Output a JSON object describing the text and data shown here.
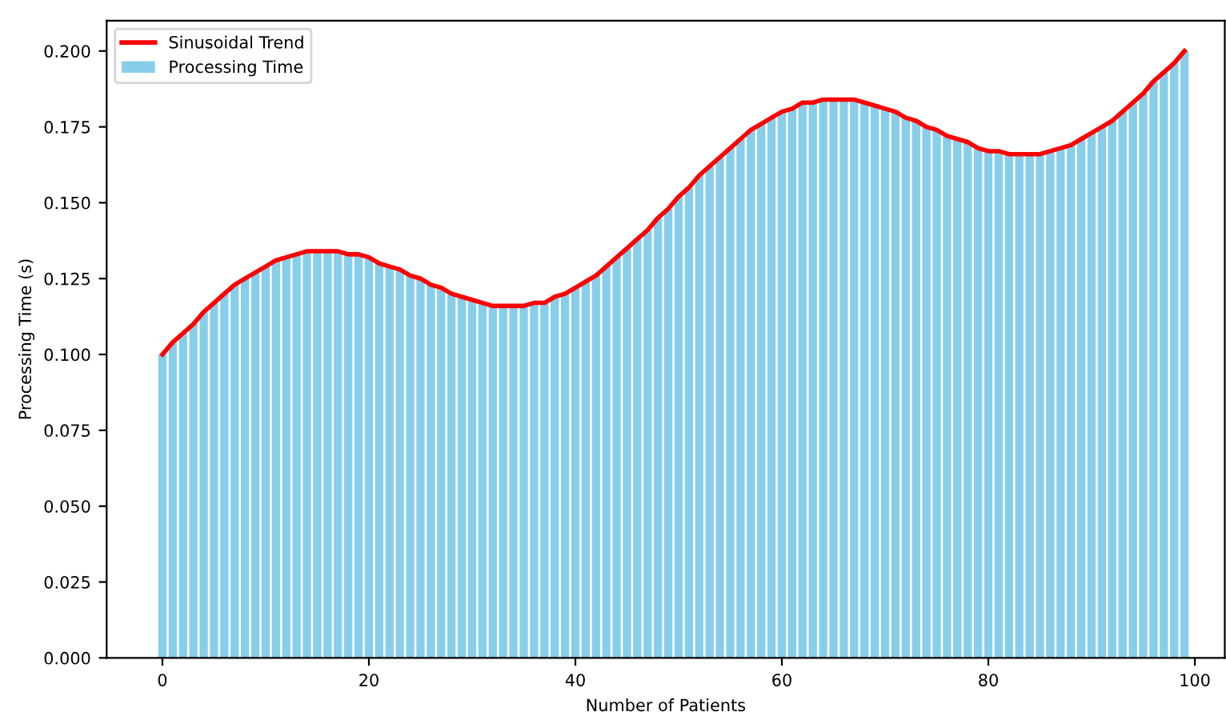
{
  "chart_data": {
    "type": "bar",
    "xlabel": "Number of Patients",
    "ylabel": "Processing Time (s)",
    "x": [
      0,
      1,
      2,
      3,
      4,
      5,
      6,
      7,
      8,
      9,
      10,
      11,
      12,
      13,
      14,
      15,
      16,
      17,
      18,
      19,
      20,
      21,
      22,
      23,
      24,
      25,
      26,
      27,
      28,
      29,
      30,
      31,
      32,
      33,
      34,
      35,
      36,
      37,
      38,
      39,
      40,
      41,
      42,
      43,
      44,
      45,
      46,
      47,
      48,
      49,
      50,
      51,
      52,
      53,
      54,
      55,
      56,
      57,
      58,
      59,
      60,
      61,
      62,
      63,
      64,
      65,
      66,
      67,
      68,
      69,
      70,
      71,
      72,
      73,
      74,
      75,
      76,
      77,
      78,
      79,
      80,
      81,
      82,
      83,
      84,
      85,
      86,
      87,
      88,
      89,
      90,
      91,
      92,
      93,
      94,
      95,
      96,
      97,
      98,
      99
    ],
    "series": [
      {
        "name": "Processing Time",
        "color": "#87ceeb",
        "values": [
          0.1,
          0.104,
          0.107,
          0.11,
          0.114,
          0.117,
          0.12,
          0.123,
          0.125,
          0.127,
          0.129,
          0.131,
          0.132,
          0.133,
          0.134,
          0.134,
          0.134,
          0.134,
          0.133,
          0.133,
          0.132,
          0.13,
          0.129,
          0.128,
          0.126,
          0.125,
          0.123,
          0.122,
          0.12,
          0.119,
          0.118,
          0.117,
          0.116,
          0.116,
          0.116,
          0.116,
          0.117,
          0.117,
          0.119,
          0.12,
          0.122,
          0.124,
          0.126,
          0.129,
          0.132,
          0.135,
          0.138,
          0.141,
          0.145,
          0.148,
          0.152,
          0.155,
          0.159,
          0.162,
          0.165,
          0.168,
          0.171,
          0.174,
          0.176,
          0.178,
          0.18,
          0.181,
          0.183,
          0.183,
          0.184,
          0.184,
          0.184,
          0.184,
          0.183,
          0.182,
          0.181,
          0.18,
          0.178,
          0.177,
          0.175,
          0.174,
          0.172,
          0.171,
          0.17,
          0.168,
          0.167,
          0.167,
          0.166,
          0.166,
          0.166,
          0.166,
          0.167,
          0.168,
          0.169,
          0.171,
          0.173,
          0.175,
          0.177,
          0.18,
          0.183,
          0.186,
          0.19,
          0.193,
          0.196,
          0.2
        ]
      },
      {
        "name": "Sinusoidal Trend",
        "type": "line",
        "color": "#ff0000",
        "values": [
          0.1,
          0.104,
          0.107,
          0.11,
          0.114,
          0.117,
          0.12,
          0.123,
          0.125,
          0.127,
          0.129,
          0.131,
          0.132,
          0.133,
          0.134,
          0.134,
          0.134,
          0.134,
          0.133,
          0.133,
          0.132,
          0.13,
          0.129,
          0.128,
          0.126,
          0.125,
          0.123,
          0.122,
          0.12,
          0.119,
          0.118,
          0.117,
          0.116,
          0.116,
          0.116,
          0.116,
          0.117,
          0.117,
          0.119,
          0.12,
          0.122,
          0.124,
          0.126,
          0.129,
          0.132,
          0.135,
          0.138,
          0.141,
          0.145,
          0.148,
          0.152,
          0.155,
          0.159,
          0.162,
          0.165,
          0.168,
          0.171,
          0.174,
          0.176,
          0.178,
          0.18,
          0.181,
          0.183,
          0.183,
          0.184,
          0.184,
          0.184,
          0.184,
          0.183,
          0.182,
          0.181,
          0.18,
          0.178,
          0.177,
          0.175,
          0.174,
          0.172,
          0.171,
          0.17,
          0.168,
          0.167,
          0.167,
          0.166,
          0.166,
          0.166,
          0.166,
          0.167,
          0.168,
          0.169,
          0.171,
          0.173,
          0.175,
          0.177,
          0.18,
          0.183,
          0.186,
          0.19,
          0.193,
          0.196,
          0.2
        ]
      }
    ],
    "xlim": [
      -5.4,
      102.9
    ],
    "xticks": [
      0,
      20,
      40,
      60,
      80,
      100
    ],
    "ylim": [
      0,
      0.21
    ],
    "yticks": [
      {
        "value": 0,
        "label": "0.000"
      },
      {
        "value": 0.025,
        "label": "0.025"
      },
      {
        "value": 0.05,
        "label": "0.050"
      },
      {
        "value": 0.075,
        "label": "0.075"
      },
      {
        "value": 0.1,
        "label": "0.100"
      },
      {
        "value": 0.125,
        "label": "0.125"
      },
      {
        "value": 0.15,
        "label": "0.150"
      },
      {
        "value": 0.175,
        "label": "0.175"
      },
      {
        "value": 0.2,
        "label": "0.200"
      }
    ],
    "legend": "top left",
    "grid": false
  }
}
